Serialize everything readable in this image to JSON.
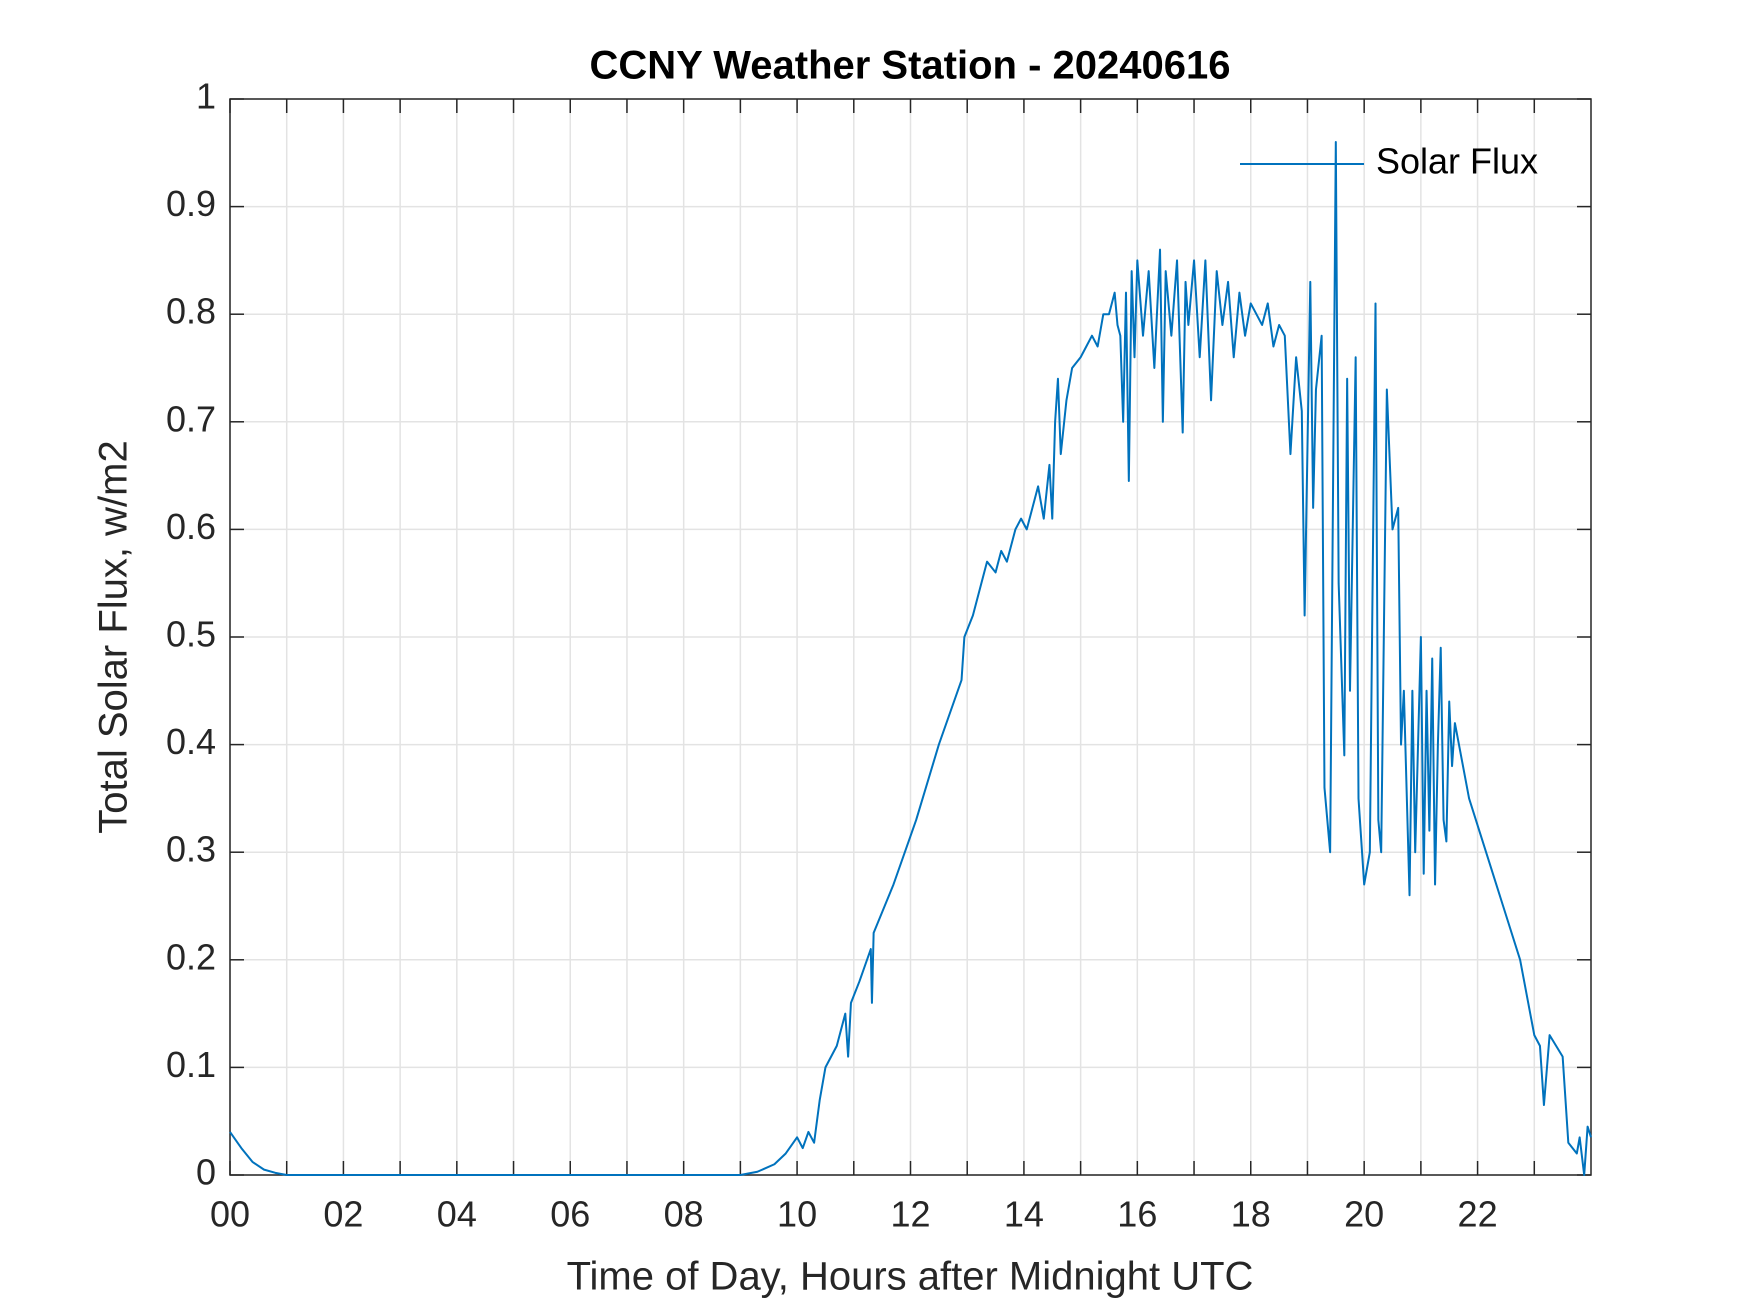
{
  "chart_data": {
    "type": "line",
    "title": "CCNY Weather Station - 20240616",
    "xlabel": "Time of Day, Hours after Midnight UTC",
    "ylabel": "Total Solar Flux, w/m2",
    "x": [
      0,
      0.2,
      0.4,
      0.6,
      0.8,
      1.0,
      3,
      5,
      7,
      9.0,
      9.3,
      9.6,
      9.8,
      10.0,
      10.1,
      10.2,
      10.3,
      10.4,
      10.5,
      10.6,
      10.7,
      10.8,
      10.85,
      10.9,
      10.95,
      11.1,
      11.3,
      11.32,
      11.35,
      11.7,
      12.1,
      12.5,
      12.9,
      12.95,
      13.1,
      13.35,
      13.5,
      13.6,
      13.7,
      13.85,
      13.95,
      14.05,
      14.15,
      14.25,
      14.35,
      14.45,
      14.5,
      14.55,
      14.6,
      14.65,
      14.75,
      14.85,
      15.0,
      15.1,
      15.2,
      15.3,
      15.4,
      15.5,
      15.6,
      15.65,
      15.7,
      15.75,
      15.8,
      15.85,
      15.9,
      15.95,
      16.0,
      16.1,
      16.2,
      16.3,
      16.4,
      16.45,
      16.5,
      16.6,
      16.7,
      16.8,
      16.85,
      16.9,
      17.0,
      17.1,
      17.2,
      17.3,
      17.4,
      17.5,
      17.6,
      17.7,
      17.8,
      17.9,
      18.0,
      18.1,
      18.2,
      18.3,
      18.4,
      18.5,
      18.6,
      18.7,
      18.8,
      18.9,
      18.95,
      19.05,
      19.1,
      19.15,
      19.25,
      19.3,
      19.4,
      19.5,
      19.55,
      19.65,
      19.7,
      19.75,
      19.85,
      19.9,
      20.0,
      20.1,
      20.2,
      20.25,
      20.3,
      20.4,
      20.5,
      20.6,
      20.65,
      20.7,
      20.8,
      20.85,
      20.9,
      21.0,
      21.05,
      21.1,
      21.15,
      21.2,
      21.25,
      21.3,
      21.35,
      21.4,
      21.45,
      21.5,
      21.55,
      21.6,
      21.85,
      22.15,
      22.45,
      22.75,
      23.0,
      23.1,
      23.17,
      23.27,
      23.5,
      23.6,
      23.75,
      23.8,
      23.88,
      23.94,
      24
    ],
    "series": [
      {
        "name": "Solar Flux",
        "color": "#0072bd",
        "values": [
          0.04,
          0.025,
          0.012,
          0.005,
          0.002,
          0,
          0,
          0,
          0,
          0,
          0.003,
          0.01,
          0.02,
          0.035,
          0.025,
          0.04,
          0.03,
          0.07,
          0.1,
          0.11,
          0.12,
          0.14,
          0.15,
          0.11,
          0.16,
          0.18,
          0.21,
          0.16,
          0.225,
          0.27,
          0.33,
          0.4,
          0.46,
          0.5,
          0.52,
          0.57,
          0.56,
          0.58,
          0.57,
          0.6,
          0.61,
          0.6,
          0.62,
          0.64,
          0.61,
          0.66,
          0.61,
          0.7,
          0.74,
          0.67,
          0.72,
          0.75,
          0.76,
          0.77,
          0.78,
          0.77,
          0.8,
          0.8,
          0.82,
          0.79,
          0.78,
          0.7,
          0.82,
          0.645,
          0.84,
          0.76,
          0.85,
          0.78,
          0.84,
          0.75,
          0.86,
          0.7,
          0.84,
          0.78,
          0.85,
          0.69,
          0.83,
          0.79,
          0.85,
          0.76,
          0.85,
          0.72,
          0.84,
          0.79,
          0.83,
          0.76,
          0.82,
          0.78,
          0.81,
          0.8,
          0.79,
          0.81,
          0.77,
          0.79,
          0.78,
          0.67,
          0.76,
          0.71,
          0.52,
          0.83,
          0.62,
          0.73,
          0.78,
          0.36,
          0.3,
          0.96,
          0.55,
          0.39,
          0.74,
          0.45,
          0.76,
          0.35,
          0.27,
          0.3,
          0.81,
          0.33,
          0.3,
          0.73,
          0.6,
          0.62,
          0.4,
          0.45,
          0.26,
          0.45,
          0.3,
          0.5,
          0.28,
          0.45,
          0.32,
          0.48,
          0.27,
          0.4,
          0.49,
          0.33,
          0.31,
          0.44,
          0.38,
          0.42,
          0.35,
          0.3,
          0.25,
          0.2,
          0.13,
          0.12,
          0.065,
          0.13,
          0.11,
          0.03,
          0.02,
          0.035,
          0,
          0.045,
          0.035
        ]
      }
    ],
    "xlim": [
      0,
      24
    ],
    "xticks": [
      {
        "value": 0,
        "label": "00"
      },
      {
        "value": 2,
        "label": "02"
      },
      {
        "value": 4,
        "label": "04"
      },
      {
        "value": 6,
        "label": "06"
      },
      {
        "value": 8,
        "label": "08"
      },
      10,
      12,
      14,
      16,
      18,
      20,
      22
    ],
    "xminorticks": [
      1,
      3,
      5,
      7,
      9,
      11,
      13,
      15,
      17,
      19,
      21,
      23
    ],
    "ylim": [
      0,
      1
    ],
    "yticks": [
      0,
      0.1,
      0.2,
      0.3,
      0.4,
      0.5,
      0.6,
      0.7,
      0.8,
      0.9,
      1
    ],
    "grid": true,
    "legend": "top-right"
  }
}
